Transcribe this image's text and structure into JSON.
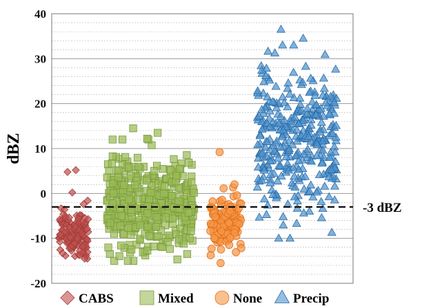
{
  "chart_data": {
    "type": "scatter",
    "title": "",
    "xlabel": "",
    "ylabel": "dBZ",
    "ylim": [
      -20,
      40
    ],
    "y_ticks": [
      "40",
      "30",
      "20",
      "10",
      "0",
      "-10",
      "-20"
    ],
    "y_tick_values": [
      40,
      30,
      20,
      10,
      0,
      -10,
      -20
    ],
    "y_major_step": 10,
    "y_minor_step": 2,
    "grid": true,
    "legend_position": "bottom",
    "annotation": {
      "y": -3,
      "text": "-3 dBZ",
      "style": "dashed"
    },
    "series": [
      {
        "name": "CABS",
        "marker": "diamond",
        "color": "#c0504d",
        "edge": "#a03c39",
        "count": 150,
        "x_range": [
          0,
          1
        ],
        "y_center": -9,
        "y_spread": 2.8,
        "y_min": -14.5,
        "y_max": 0.5,
        "outliers": [
          4.8,
          5.2,
          0.2
        ]
      },
      {
        "name": "Mixed",
        "marker": "square",
        "color": "#9bbb59",
        "edge": "#7a9a3c",
        "count": 420,
        "x_range": [
          0,
          1
        ],
        "y_center": -2.5,
        "y_spread": 5.2,
        "y_min": -15,
        "y_max": 12,
        "outliers": [
          14.5,
          13.5,
          12.2
        ]
      },
      {
        "name": "None",
        "marker": "circle",
        "color": "#f79646",
        "edge": "#e0701a",
        "count": 130,
        "x_range": [
          0,
          1
        ],
        "y_center": -6.5,
        "y_spread": 3.2,
        "y_min": -15.5,
        "y_max": 2.5,
        "outliers": [
          9.2
        ]
      },
      {
        "name": "Precip",
        "marker": "triangle",
        "color": "#4f94cd",
        "edge": "#2a6aa8",
        "count": 340,
        "x_range": [
          0,
          1
        ],
        "y_center": 11,
        "y_spread": 8.5,
        "y_min": -10,
        "y_max": 33,
        "outliers": [
          36.5,
          34.5,
          33
        ]
      }
    ]
  }
}
